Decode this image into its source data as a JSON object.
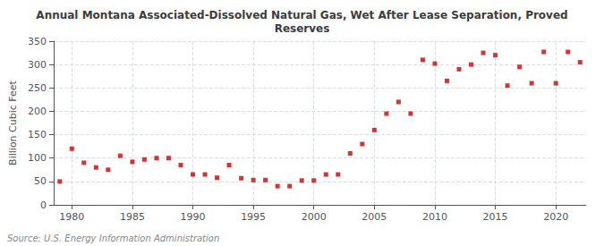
{
  "chart_data": {
    "type": "scatter",
    "title": "Annual Montana Associated-Dissolved Natural Gas, Wet After Lease Separation, Proved\nReserves",
    "ylabel": "Billion Cubic Feet",
    "annotation": "Source: U.S. Energy Information Administration",
    "color": "#cc0000",
    "marker": "square",
    "x": [
      1979,
      1980,
      1981,
      1982,
      1983,
      1984,
      1985,
      1986,
      1987,
      1988,
      1989,
      1990,
      1991,
      1992,
      1993,
      1994,
      1995,
      1996,
      1997,
      1998,
      1999,
      2000,
      2001,
      2002,
      2003,
      2004,
      2005,
      2006,
      2007,
      2008,
      2009,
      2010,
      2011,
      2012,
      2013,
      2014,
      2015,
      2016,
      2017,
      2018,
      2019,
      2020,
      2021,
      2022
    ],
    "values": [
      50,
      120,
      90,
      80,
      75,
      105,
      92,
      97,
      100,
      100,
      85,
      65,
      65,
      58,
      85,
      57,
      53,
      53,
      40,
      40,
      52,
      52,
      65,
      65,
      110,
      130,
      160,
      195,
      220,
      195,
      310,
      302,
      265,
      290,
      300,
      325,
      320,
      255,
      295,
      260,
      327,
      260,
      327,
      305
    ],
    "xlim": [
      1978.5,
      2022.5
    ],
    "xticks": [
      1980,
      1985,
      1990,
      1995,
      2000,
      2005,
      2010,
      2015,
      2020
    ],
    "ylim": [
      0,
      350
    ],
    "yticks": [
      0,
      50,
      100,
      150,
      200,
      250,
      300,
      350
    ],
    "grid": true
  }
}
